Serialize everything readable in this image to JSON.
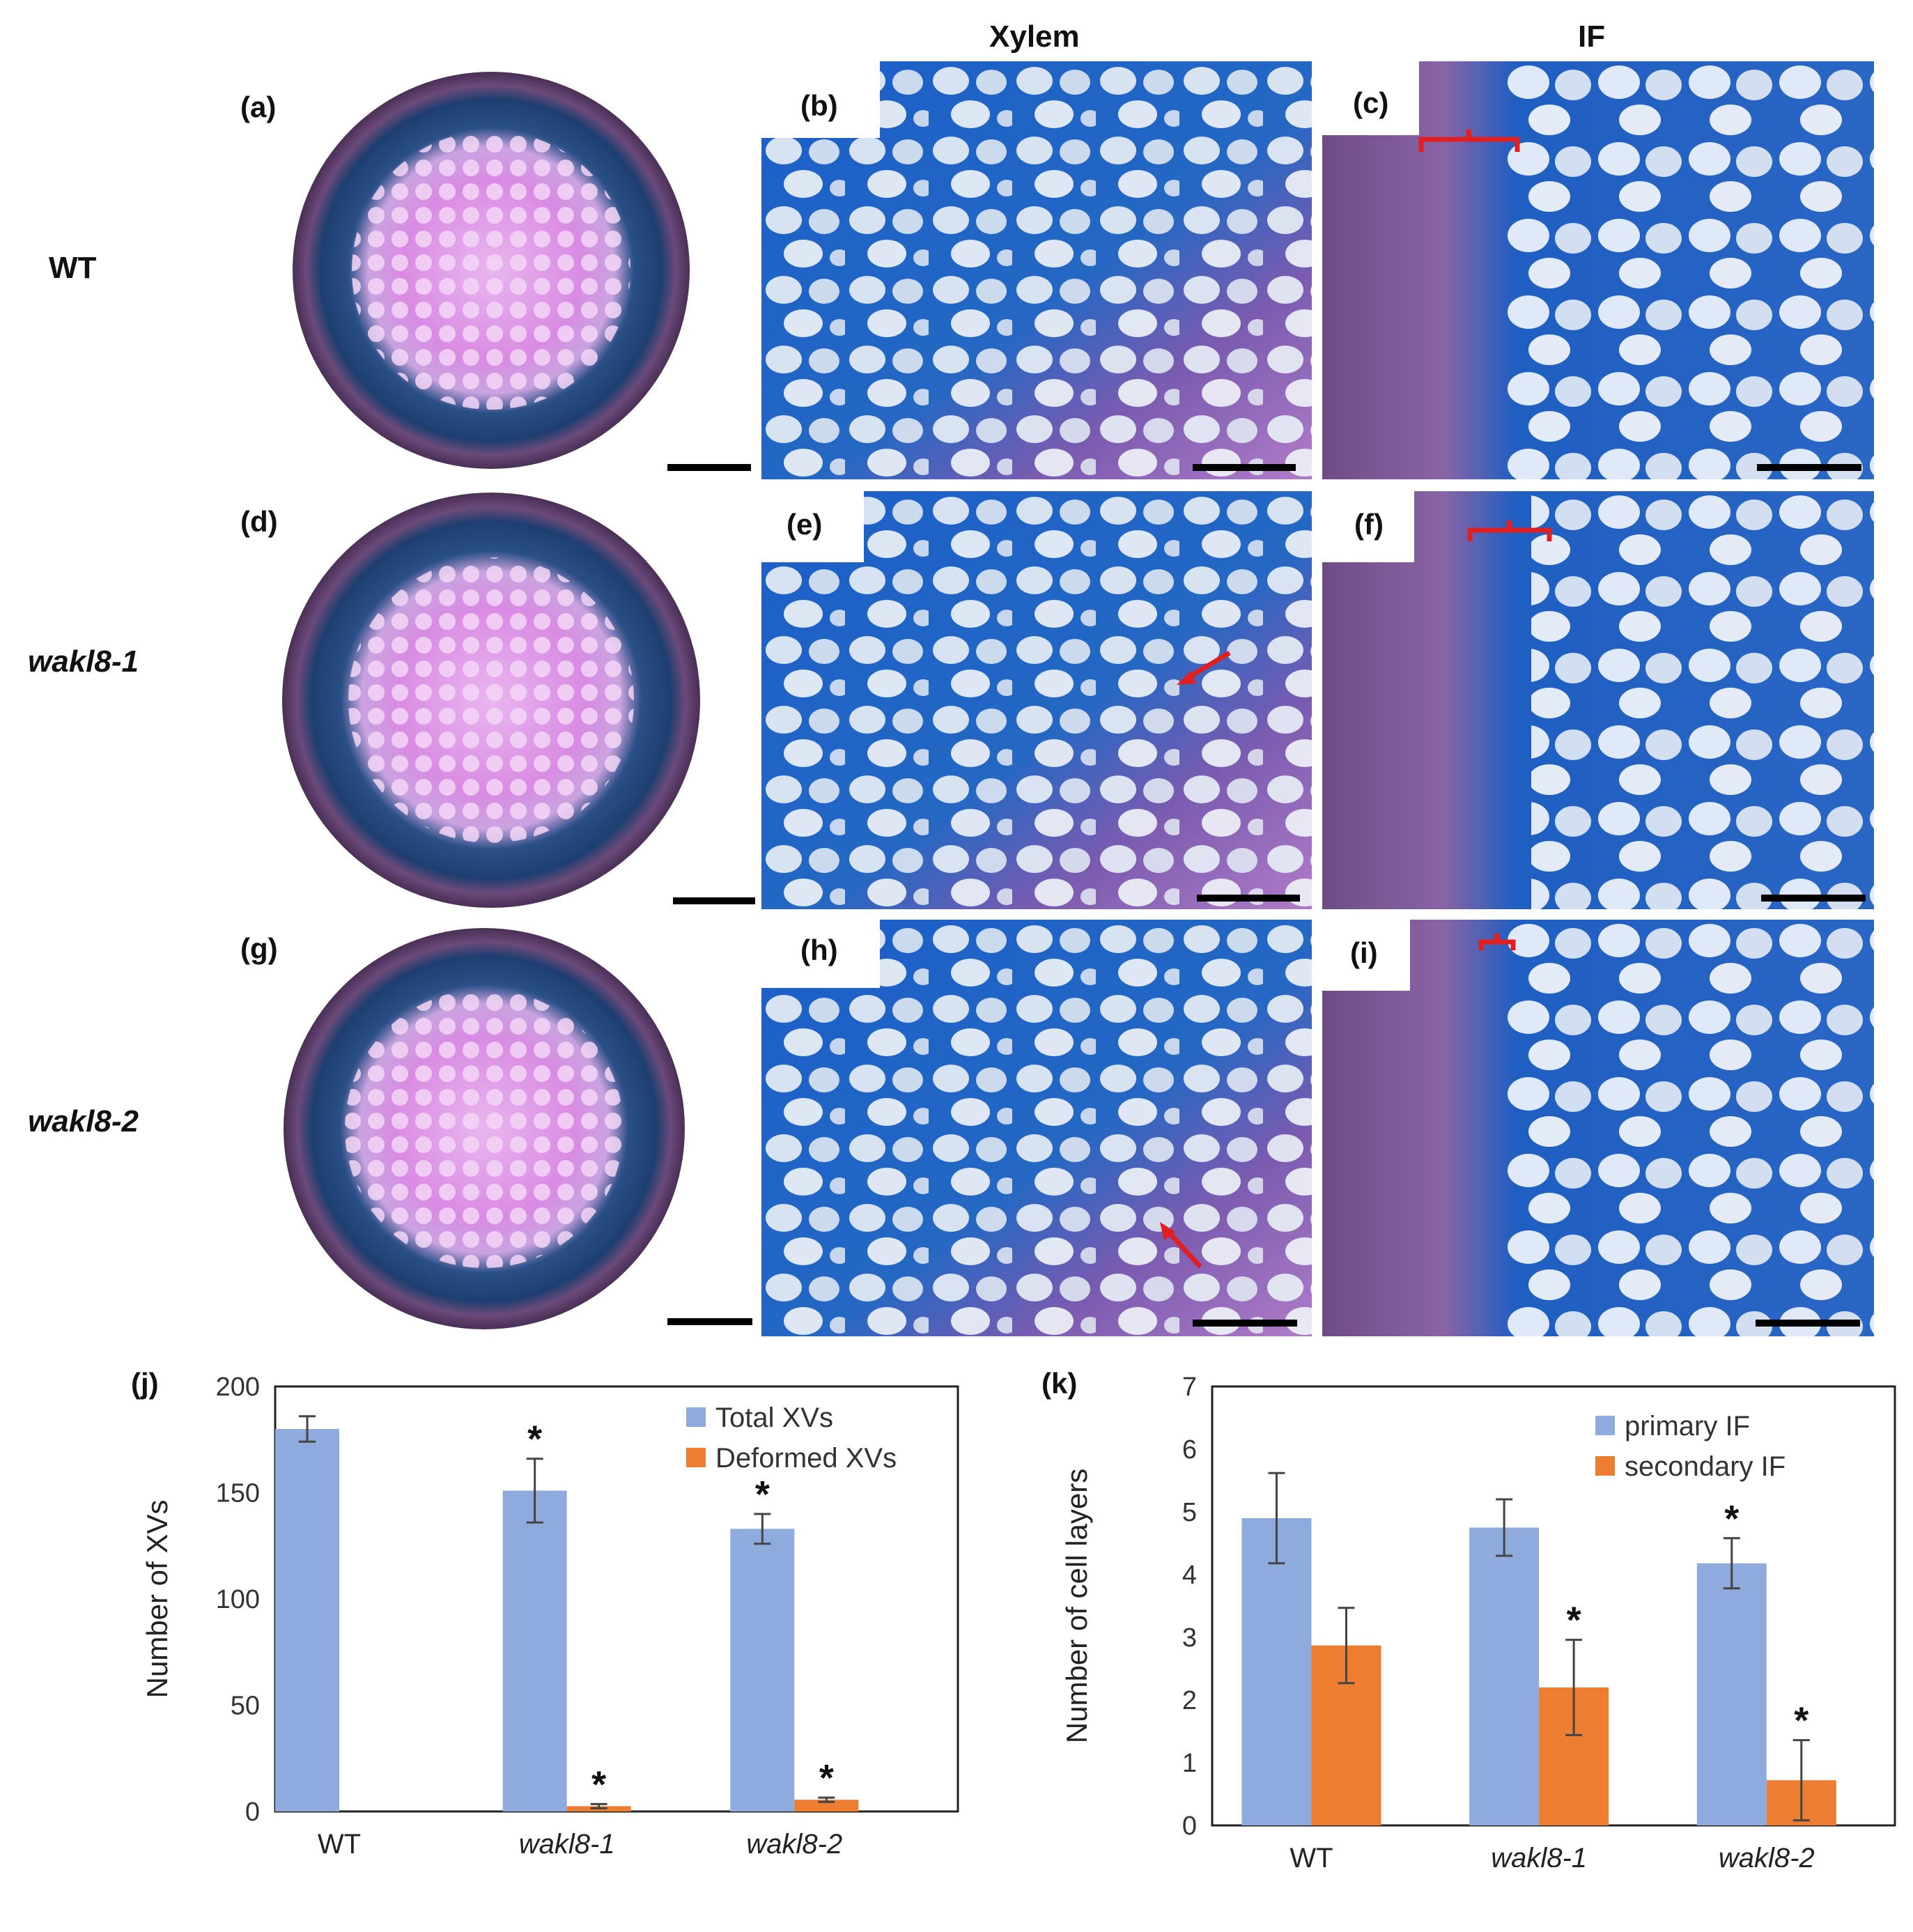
{
  "column_headers": {
    "xylem": "Xylem",
    "if": "IF"
  },
  "row_headers": {
    "wt": "WT",
    "wakl8_1": "wakl8-1",
    "wakl8_2": "wakl8-2"
  },
  "panel_labels": {
    "a": "(a)",
    "b": "(b)",
    "c": "(c)",
    "d": "(d)",
    "e": "(e)",
    "f": "(f)",
    "g": "(g)",
    "h": "(h)",
    "i": "(i)",
    "j": "(j)",
    "k": "(k)"
  },
  "colors": {
    "blue_series": "#8faadc",
    "orange_series": "#ed7d31",
    "stain_blue": "#1f5fb8",
    "stain_purple": "#9b59b6",
    "annotation_red": "#e02020"
  },
  "chart_data": [
    {
      "id": "j",
      "type": "bar",
      "title": "",
      "ylabel": "Number of XVs",
      "xlabel": "",
      "ylim": [
        0,
        200
      ],
      "yticks": [
        0,
        50,
        100,
        150,
        200
      ],
      "categories": [
        "WT",
        "wakl8-1",
        "wakl8-2"
      ],
      "legend_position": "top-right",
      "series": [
        {
          "name": "Total  XVs",
          "values": [
            180,
            151,
            133
          ],
          "errors": [
            6,
            15,
            7
          ],
          "significant": [
            false,
            true,
            true
          ]
        },
        {
          "name": "Deformed XVs",
          "values": [
            0,
            2.5,
            5.5
          ],
          "errors": [
            0,
            1,
            1
          ],
          "significant": [
            false,
            true,
            true
          ]
        }
      ],
      "significance_marker": "*"
    },
    {
      "id": "k",
      "type": "bar",
      "title": "",
      "ylabel": "Number of cell layers",
      "xlabel": "",
      "ylim": [
        0,
        7
      ],
      "yticks": [
        0,
        1,
        2,
        3,
        4,
        5,
        6,
        7
      ],
      "categories": [
        "WT",
        "wakl8-1",
        "wakl8-2"
      ],
      "legend_position": "top-right",
      "series": [
        {
          "name": "primary IF",
          "values": [
            4.9,
            4.75,
            4.18
          ],
          "errors": [
            0.72,
            0.45,
            0.4
          ],
          "significant": [
            false,
            false,
            true
          ]
        },
        {
          "name": "secondary IF",
          "values": [
            2.87,
            2.2,
            0.72
          ],
          "errors": [
            0.6,
            0.76,
            0.64
          ],
          "significant": [
            false,
            true,
            true
          ]
        }
      ],
      "significance_marker": "*"
    }
  ]
}
